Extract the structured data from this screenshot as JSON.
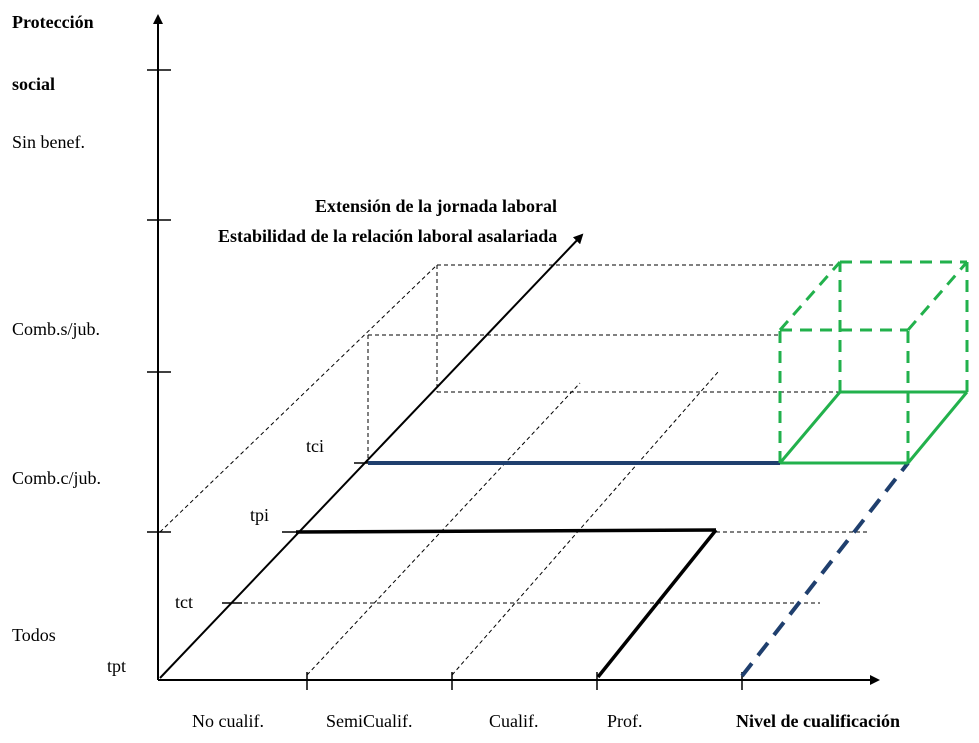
{
  "y_axis": {
    "title_line1": "Protección",
    "title_line2": "social",
    "levels": [
      "Sin benef.",
      "Comb.s/jub.",
      "Comb.c/jub.",
      "Todos"
    ]
  },
  "x_axis": {
    "title": "Nivel de cualificación",
    "categories": [
      "No cualif.",
      "SemiCualif.",
      "Cualif.",
      "Prof."
    ]
  },
  "depth_axis": {
    "title_line1": "Extensión de la jornada laboral",
    "title_line2": "Estabilidad de la relación laboral asalariada"
  },
  "depth_ticks": [
    "tpt",
    "tct",
    "tpi",
    "tci"
  ],
  "colors": {
    "axis": "#000000",
    "blue": "#1f3f6e",
    "green": "#22b14c"
  }
}
